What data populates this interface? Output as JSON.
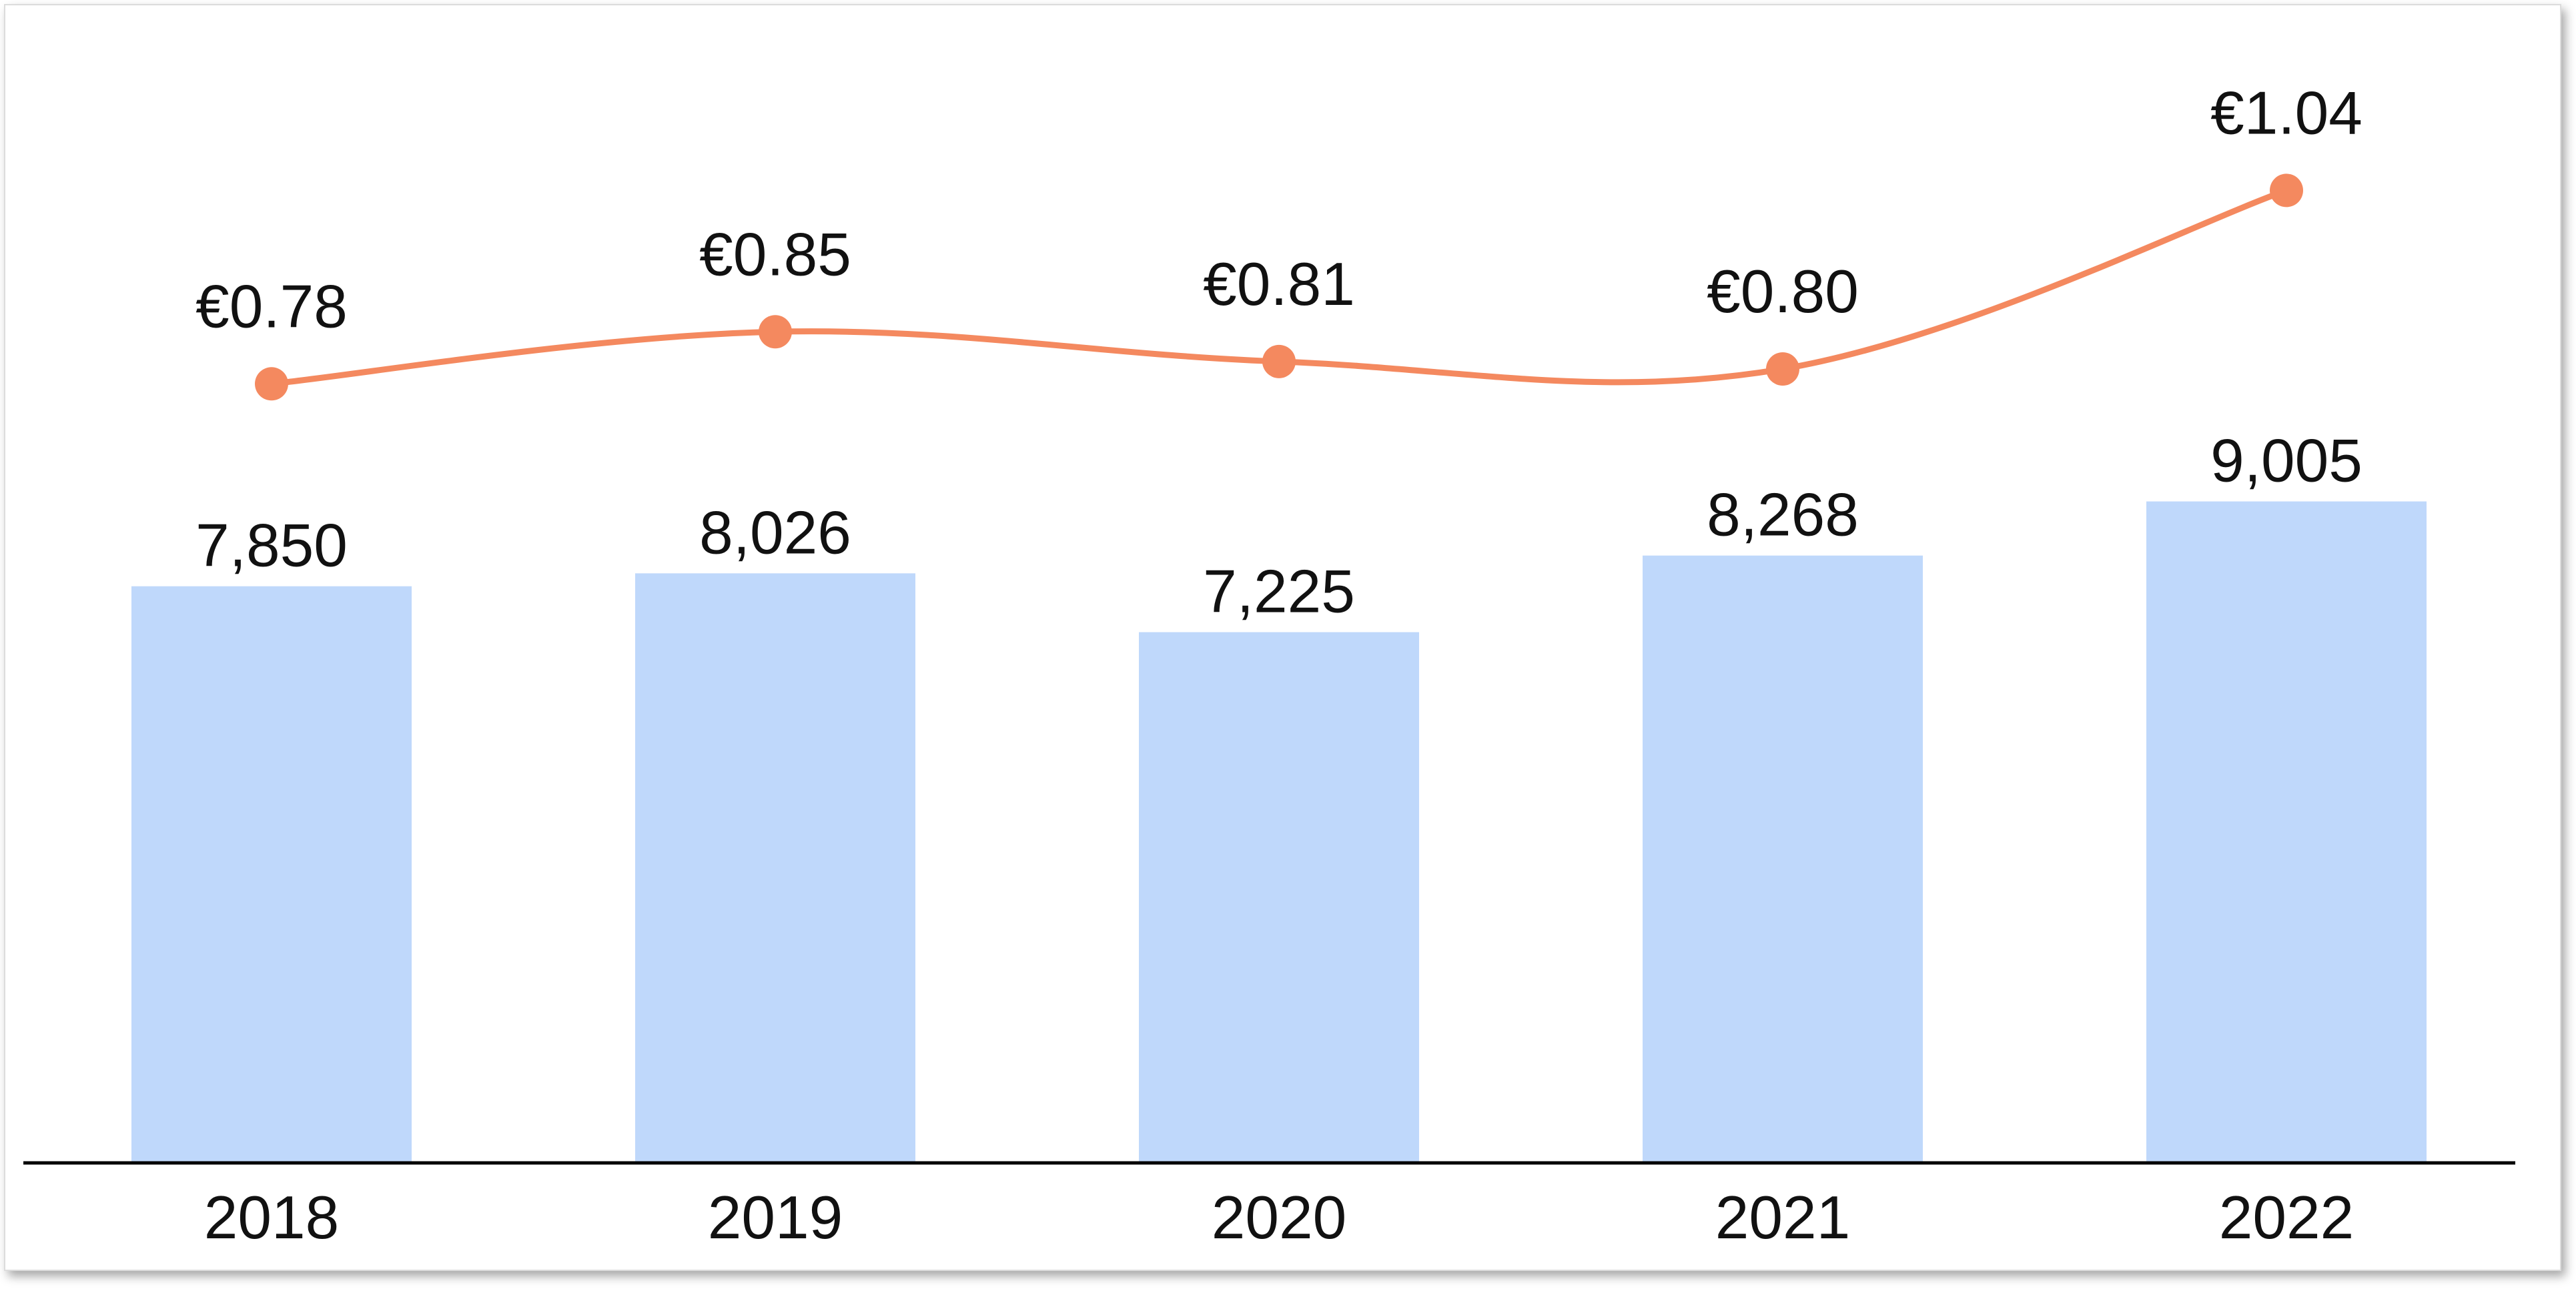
{
  "chart_data": {
    "type": "bar",
    "categories": [
      "2018",
      "2019",
      "2020",
      "2021",
      "2022"
    ],
    "series": [
      {
        "type": "bar",
        "values": [
          7850,
          8026,
          7225,
          8268,
          9005
        ],
        "value_labels": [
          "7,850",
          "8,026",
          "7,225",
          "8,268",
          "9,005"
        ],
        "color": "#bfd8fb"
      },
      {
        "type": "line",
        "values": [
          0.78,
          0.85,
          0.81,
          0.8,
          1.04
        ],
        "value_labels": [
          "€0.78",
          "€0.85",
          "€0.81",
          "€0.80",
          "€1.04"
        ],
        "color": "#f4895f"
      }
    ],
    "title": "",
    "xlabel": "",
    "ylabel": "",
    "grid": false,
    "legend": "none"
  }
}
